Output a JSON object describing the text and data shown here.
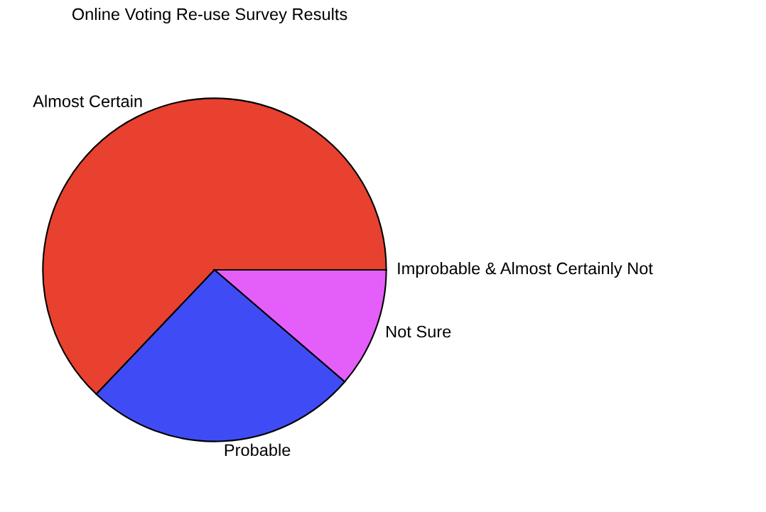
{
  "chart_data": {
    "type": "pie",
    "title": "Online Voting Re-use Survey Results",
    "categories": [
      "Almost Certain",
      "Probable",
      "Not Sure",
      "Improbable & Almost Certainly Not"
    ],
    "values": [
      62.9,
      25.8,
      11.3,
      0
    ],
    "colors": [
      "#e8412f",
      "#3f4cf5",
      "#e45ffa",
      "#a040a0"
    ]
  }
}
